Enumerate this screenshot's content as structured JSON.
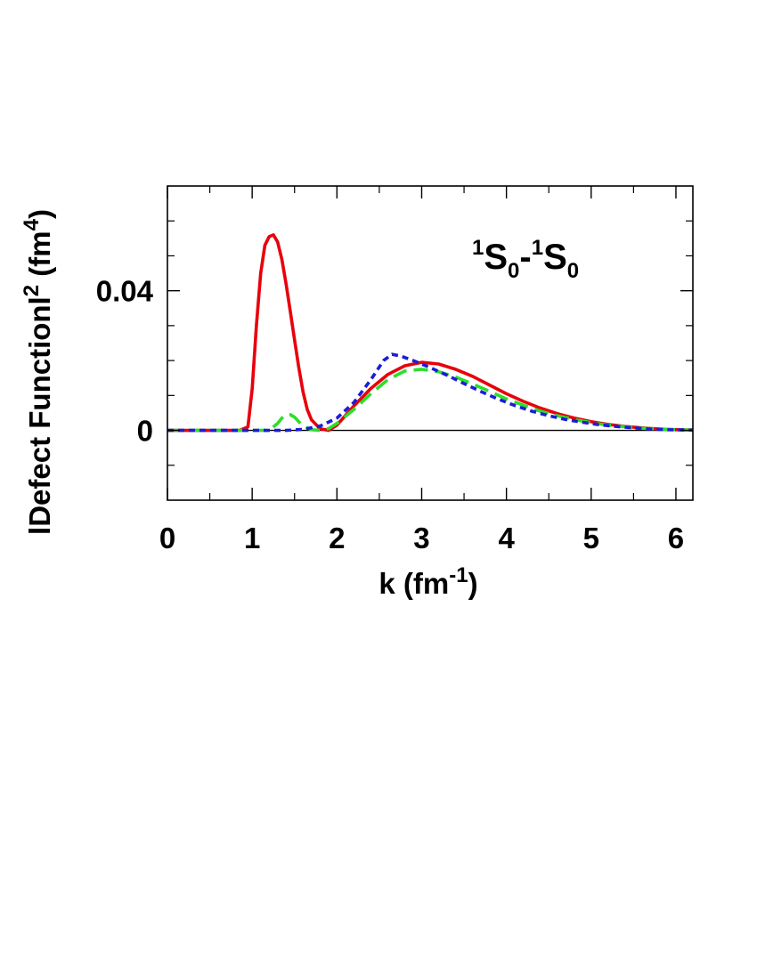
{
  "chart_data": {
    "type": "line",
    "annotation": {
      "sup1": "1",
      "main1": "S",
      "sub1": "0",
      "dash": "-",
      "sup2": "1",
      "main2": "S",
      "sub2": "0"
    },
    "xlabel": {
      "prefix": "k (fm",
      "sup": "-1",
      "suffix": ")"
    },
    "ylabel": {
      "prefix": "lDefect Functionl",
      "sup1": "2",
      "mid": " (fm",
      "sup2": "4",
      "suffix": ")"
    },
    "xlim": [
      0,
      6.2
    ],
    "ylim": [
      -0.02,
      0.07
    ],
    "x_ticks": [
      {
        "value": 0,
        "label": "0"
      },
      {
        "value": 1,
        "label": "1"
      },
      {
        "value": 2,
        "label": "2"
      },
      {
        "value": 3,
        "label": "3"
      },
      {
        "value": 4,
        "label": "4"
      },
      {
        "value": 5,
        "label": "5"
      },
      {
        "value": 6,
        "label": "6"
      }
    ],
    "y_ticks": [
      {
        "value": 0,
        "label": "0"
      },
      {
        "value": 0.04,
        "label": "0.04"
      }
    ],
    "x_minor": [
      0.5,
      1.5,
      2.5,
      3.5,
      4.5,
      5.5
    ],
    "y_minor": [
      -0.01,
      0.01,
      0.02,
      0.03,
      0.05,
      0.06
    ],
    "zero_line": true,
    "series": [
      {
        "color": "#e8000b",
        "style": "solid",
        "points": [
          [
            0,
            0
          ],
          [
            0.85,
            0
          ],
          [
            0.95,
            0.001
          ],
          [
            1.0,
            0.012
          ],
          [
            1.05,
            0.03
          ],
          [
            1.1,
            0.045
          ],
          [
            1.15,
            0.053
          ],
          [
            1.2,
            0.0555
          ],
          [
            1.25,
            0.056
          ],
          [
            1.3,
            0.054
          ],
          [
            1.35,
            0.049
          ],
          [
            1.4,
            0.042
          ],
          [
            1.45,
            0.034
          ],
          [
            1.5,
            0.026
          ],
          [
            1.55,
            0.018
          ],
          [
            1.6,
            0.011
          ],
          [
            1.65,
            0.006
          ],
          [
            1.7,
            0.003
          ],
          [
            1.8,
            0.0005
          ],
          [
            1.9,
            0.0
          ],
          [
            2.0,
            0.0015
          ],
          [
            2.2,
            0.007
          ],
          [
            2.4,
            0.012
          ],
          [
            2.6,
            0.016
          ],
          [
            2.8,
            0.0185
          ],
          [
            3.0,
            0.0195
          ],
          [
            3.2,
            0.019
          ],
          [
            3.4,
            0.0175
          ],
          [
            3.6,
            0.0155
          ],
          [
            3.8,
            0.013
          ],
          [
            4.0,
            0.0105
          ],
          [
            4.2,
            0.0083
          ],
          [
            4.4,
            0.0064
          ],
          [
            4.6,
            0.0048
          ],
          [
            4.8,
            0.0035
          ],
          [
            5.0,
            0.0025
          ],
          [
            5.2,
            0.0017
          ],
          [
            5.4,
            0.0011
          ],
          [
            5.6,
            0.0007
          ],
          [
            5.8,
            0.0004
          ],
          [
            6.0,
            0.0002
          ],
          [
            6.2,
            0.0001
          ]
        ]
      },
      {
        "color": "#2bdf2b",
        "style": "dash",
        "points": [
          [
            0,
            0
          ],
          [
            1.2,
            0
          ],
          [
            1.3,
            0.002
          ],
          [
            1.35,
            0.0035
          ],
          [
            1.4,
            0.0045
          ],
          [
            1.45,
            0.0045
          ],
          [
            1.5,
            0.0038
          ],
          [
            1.55,
            0.0025
          ],
          [
            1.6,
            0.0012
          ],
          [
            1.7,
            0.0002
          ],
          [
            1.8,
            0.0
          ],
          [
            1.9,
            0.0005
          ],
          [
            2.0,
            0.002
          ],
          [
            2.2,
            0.006
          ],
          [
            2.4,
            0.0105
          ],
          [
            2.6,
            0.0145
          ],
          [
            2.8,
            0.017
          ],
          [
            3.0,
            0.0175
          ],
          [
            3.2,
            0.0168
          ],
          [
            3.4,
            0.0153
          ],
          [
            3.6,
            0.0133
          ],
          [
            3.8,
            0.0112
          ],
          [
            4.0,
            0.009
          ],
          [
            4.2,
            0.0072
          ],
          [
            4.4,
            0.0055
          ],
          [
            4.6,
            0.0042
          ],
          [
            4.8,
            0.0031
          ],
          [
            5.0,
            0.0022
          ],
          [
            5.2,
            0.0015
          ],
          [
            5.4,
            0.001
          ],
          [
            5.6,
            0.0006
          ],
          [
            5.8,
            0.0004
          ],
          [
            6.0,
            0.0002
          ],
          [
            6.2,
            0.0001
          ]
        ]
      },
      {
        "color": "#1c1cd8",
        "style": "dot",
        "points": [
          [
            0,
            0
          ],
          [
            1.4,
            0
          ],
          [
            1.6,
            0.0003
          ],
          [
            1.8,
            0.0012
          ],
          [
            2.0,
            0.0035
          ],
          [
            2.2,
            0.008
          ],
          [
            2.4,
            0.0145
          ],
          [
            2.55,
            0.02
          ],
          [
            2.65,
            0.0218
          ],
          [
            2.75,
            0.0213
          ],
          [
            2.9,
            0.02
          ],
          [
            3.1,
            0.018
          ],
          [
            3.3,
            0.0158
          ],
          [
            3.5,
            0.0134
          ],
          [
            3.7,
            0.0111
          ],
          [
            3.9,
            0.009
          ],
          [
            4.1,
            0.0071
          ],
          [
            4.3,
            0.0055
          ],
          [
            4.5,
            0.0042
          ],
          [
            4.7,
            0.0031
          ],
          [
            4.9,
            0.0023
          ],
          [
            5.1,
            0.0016
          ],
          [
            5.3,
            0.0011
          ],
          [
            5.5,
            0.0007
          ],
          [
            5.7,
            0.0004
          ],
          [
            5.9,
            0.0002
          ],
          [
            6.2,
            0.0001
          ]
        ]
      }
    ]
  }
}
